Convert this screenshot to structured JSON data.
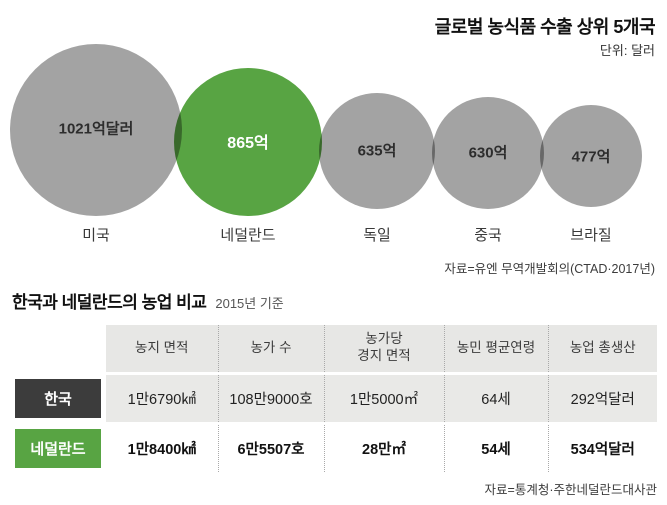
{
  "colors": {
    "highlight_green": "#58a443",
    "bubble_gray": "#a3a3a3",
    "korea_label_bg": "#3c3c3c",
    "header_bg": "#e7e7e5",
    "korea_row_bg": "#e9e9e7"
  },
  "chart_data": [
    {
      "type": "bubble",
      "title": "글로벌 농식품 수출 상위 5개국",
      "unit_label": "단위: 달러",
      "categories": [
        "미국",
        "네덜란드",
        "독일",
        "중국",
        "브라질"
      ],
      "values": [
        1021,
        865,
        635,
        630,
        477
      ],
      "value_unit": "억 달러",
      "value_labels": [
        "1021억달러",
        "865억",
        "635억",
        "630억",
        "477억"
      ],
      "highlight_category": "네덜란드",
      "source": "자료=유엔 무역개발회의(CTAD·2017년)"
    },
    {
      "type": "table",
      "title": "한국과 네덜란드의 농업 비교",
      "subtitle": "2015년 기준",
      "columns": [
        "농지 면적",
        "농가 수",
        "농가당\n경지 면적",
        "농민 평균연령",
        "농업 총생산"
      ],
      "rows": [
        {
          "label": "한국",
          "values": [
            "1만6790㎢",
            "108만9000호",
            "1만5000㎡",
            "64세",
            "292억달러"
          ]
        },
        {
          "label": "네덜란드",
          "values": [
            "1만8400㎢",
            "6만5507호",
            "28만㎡",
            "54세",
            "534억달러"
          ]
        }
      ],
      "source": "자료=통계청·주한네덜란드대사관"
    }
  ]
}
